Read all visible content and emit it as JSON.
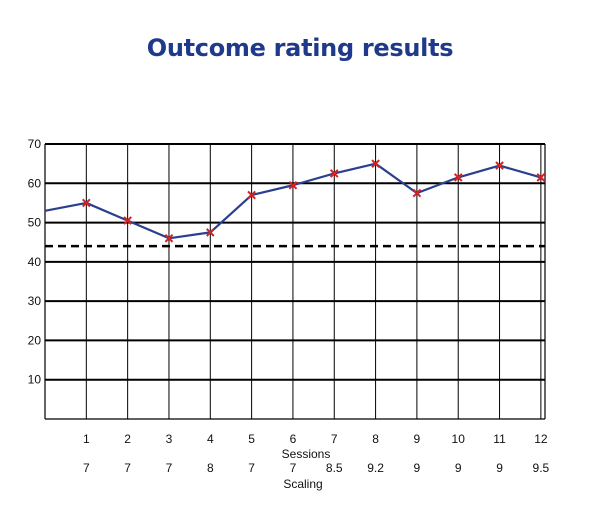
{
  "chart_data": {
    "type": "line",
    "title": "Outcome rating results",
    "categories": [
      "1",
      "2",
      "3",
      "4",
      "5",
      "6",
      "7",
      "8",
      "9",
      "10",
      "11",
      "12"
    ],
    "x_axis_label": "Sessions",
    "secondary_x_label": "Scaling",
    "scaling": [
      "7",
      "7",
      "7",
      "8",
      "7",
      "7",
      "8.5",
      "9.2",
      "9",
      "9",
      "9",
      "9.5"
    ],
    "series": [
      {
        "values": [
          55,
          50.5,
          46,
          47.5,
          57,
          59.5,
          62.5,
          65,
          57.5,
          61.5,
          64.5,
          61.5
        ],
        "start_value": 53,
        "line_color": "#2b3f8f",
        "marker_color": "#d62222"
      }
    ],
    "reference_line": {
      "value": 44,
      "style": "dashed",
      "color": "#000000"
    },
    "ylim": [
      0,
      70
    ],
    "y_ticks": [
      10,
      20,
      30,
      40,
      50,
      60,
      70
    ],
    "grid": true
  }
}
